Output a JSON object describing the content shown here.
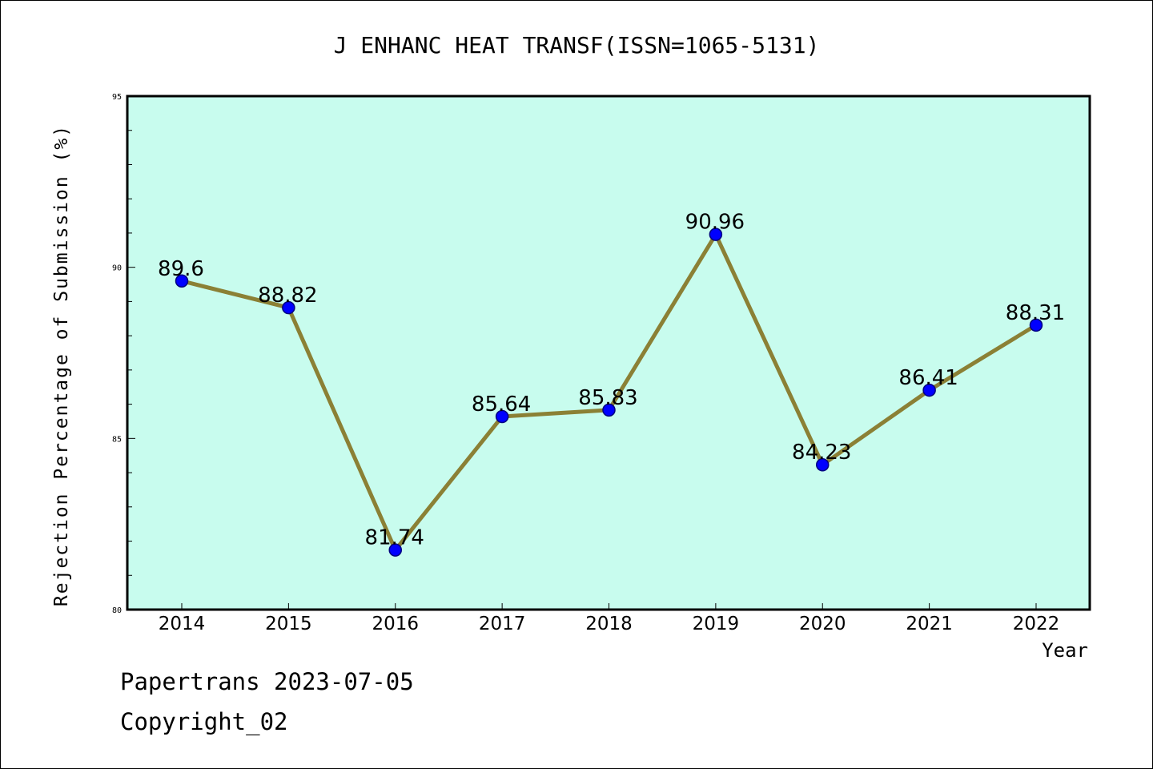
{
  "chart_data": {
    "type": "line",
    "title": "J ENHANC HEAT TRANSF(ISSN=1065-5131)",
    "xlabel": "Year",
    "ylabel": "Rejection Percentage of Submission (%)",
    "categories": [
      "2014",
      "2015",
      "2016",
      "2017",
      "2018",
      "2019",
      "2020",
      "2021",
      "2022"
    ],
    "values": [
      89.6,
      88.82,
      81.74,
      85.64,
      85.83,
      90.96,
      84.23,
      86.41,
      88.31
    ],
    "data_labels": [
      "89.6",
      "88.82",
      "81.74",
      "85.64",
      "85.83",
      "90.96",
      "84.23",
      "86.41",
      "88.31"
    ],
    "ylim": [
      80,
      95
    ],
    "y_major_ticks": [
      80,
      85,
      90,
      95
    ],
    "y_minor_step": 1,
    "grid": false,
    "colors": {
      "plot_background": "#c8fcee",
      "line": "#8b8035",
      "marker": "#0000ff",
      "marker_edge": "#000080"
    }
  },
  "footer": {
    "line1": "Papertrans 2023-07-05",
    "line2": "Copyright_02"
  }
}
